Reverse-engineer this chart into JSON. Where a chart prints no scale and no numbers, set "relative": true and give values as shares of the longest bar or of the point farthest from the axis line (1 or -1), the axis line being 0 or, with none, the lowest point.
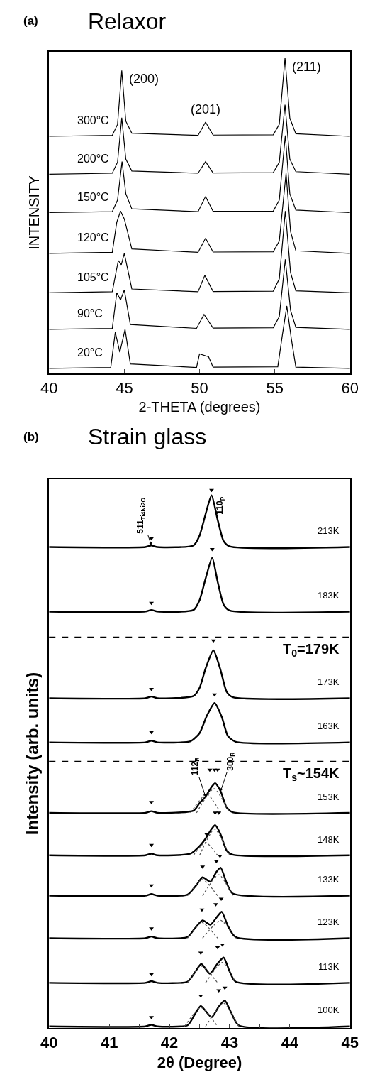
{
  "chart_data": [
    {
      "type": "line",
      "title": "Relaxor",
      "xlabel": "2-THETA (degrees)",
      "ylabel": "INTENSITY",
      "relative": true,
      "tick_labels": "x",
      "xlim": [
        40,
        60
      ],
      "xticks": [
        40,
        45,
        50,
        55,
        60
      ],
      "annotations": [
        "(a)",
        {
          "text": "(200)",
          "x": 44.83,
          "y": 0.961
        },
        {
          "text": "(201)",
          "x": 50.4,
          "y": 0.797
        },
        {
          "text": "(211)",
          "x": 55.68,
          "y": 1.0
        }
      ],
      "series": [
        {
          "name": "300°C",
          "color": "#000000",
          "x": [
            40,
            44.2,
            44.55,
            44.83,
            45.1,
            45.5,
            49.9,
            50.4,
            50.9,
            54.9,
            55.3,
            55.68,
            56.0,
            56.4,
            60
          ],
          "values": [
            0.752,
            0.755,
            0.79,
            0.961,
            0.8,
            0.762,
            0.755,
            0.797,
            0.756,
            0.757,
            0.79,
            1.0,
            0.81,
            0.76,
            0.752
          ]
        },
        {
          "name": "200°C",
          "color": "#000000",
          "x": [
            40,
            44.2,
            44.55,
            44.83,
            45.1,
            45.5,
            49.9,
            50.4,
            50.9,
            54.9,
            55.3,
            55.68,
            56.0,
            56.4,
            60
          ],
          "values": [
            0.632,
            0.635,
            0.67,
            0.811,
            0.68,
            0.642,
            0.635,
            0.672,
            0.636,
            0.637,
            0.67,
            0.852,
            0.68,
            0.64,
            0.632
          ]
        },
        {
          "name": "150°C",
          "color": "#000000",
          "x": [
            40,
            44.2,
            44.55,
            44.85,
            45.1,
            45.5,
            49.9,
            50.4,
            50.9,
            54.9,
            55.3,
            55.7,
            56.0,
            56.4,
            60
          ],
          "values": [
            0.51,
            0.513,
            0.55,
            0.672,
            0.57,
            0.522,
            0.513,
            0.561,
            0.514,
            0.515,
            0.55,
            0.755,
            0.57,
            0.518,
            0.51
          ]
        },
        {
          "name": "120°C",
          "color": "#000000",
          "x": [
            40,
            44.2,
            44.5,
            44.75,
            45.0,
            45.5,
            49.9,
            50.4,
            50.9,
            54.9,
            55.3,
            55.75,
            56.05,
            56.4,
            60
          ],
          "values": [
            0.381,
            0.384,
            0.48,
            0.515,
            0.49,
            0.395,
            0.384,
            0.429,
            0.385,
            0.386,
            0.42,
            0.635,
            0.45,
            0.389,
            0.381
          ]
        },
        {
          "name": "105°C",
          "color": "#000000",
          "x": [
            40,
            44.2,
            44.6,
            44.8,
            45.0,
            45.5,
            49.9,
            50.35,
            50.9,
            54.9,
            55.3,
            55.7,
            56.05,
            56.4,
            60
          ],
          "values": [
            0.256,
            0.259,
            0.358,
            0.345,
            0.381,
            0.268,
            0.259,
            0.311,
            0.26,
            0.261,
            0.3,
            0.515,
            0.32,
            0.262,
            0.256
          ]
        },
        {
          "name": "90°C",
          "color": "#000000",
          "x": [
            40,
            44.2,
            44.5,
            44.75,
            45.0,
            45.4,
            49.8,
            50.3,
            50.9,
            54.9,
            55.3,
            55.7,
            56.05,
            56.4,
            60
          ],
          "values": [
            0.14,
            0.143,
            0.256,
            0.233,
            0.265,
            0.155,
            0.143,
            0.187,
            0.144,
            0.145,
            0.18,
            0.362,
            0.2,
            0.146,
            0.14
          ]
        },
        {
          "name": "20°C",
          "color": "#000000",
          "x": [
            40,
            44.1,
            44.4,
            44.7,
            45.05,
            45.4,
            49.8,
            50.0,
            50.6,
            50.9,
            55.2,
            55.5,
            55.8,
            56.1,
            56.4,
            60
          ],
          "values": [
            0.016,
            0.019,
            0.131,
            0.067,
            0.14,
            0.03,
            0.019,
            0.062,
            0.053,
            0.02,
            0.021,
            0.12,
            0.214,
            0.11,
            0.02,
            0.016
          ]
        }
      ]
    },
    {
      "type": "line",
      "title": "Strain glass",
      "xlabel": "2θ (Degree)",
      "ylabel": "Intensity (arb. units)",
      "relative": true,
      "tick_labels": "x",
      "xlim": [
        40,
        45
      ],
      "xticks": [
        40,
        {
          "value": 40.5,
          "label": null
        },
        41,
        {
          "value": 41.5,
          "label": null
        },
        42,
        {
          "value": 42.5,
          "label": null
        },
        43,
        {
          "value": 43.5,
          "label": null
        },
        44,
        {
          "value": 44.5,
          "label": null
        },
        45
      ],
      "annotations": [
        "(b)",
        {
          "text": "511$_{Ti4Ni2O}$",
          "x": 41.7,
          "y": 0.897
        },
        {
          "text": "110$_{P}$",
          "x": 42.7,
          "y": 0.99
        },
        {
          "text": "112$_{R}$",
          "x": 42.6,
          "y": 0.43
        },
        {
          "text": "300$_{R}$",
          "x": 42.85,
          "y": 0.44
        },
        "T$_{0}$=179K",
        "T$_{s}$~154K"
      ],
      "ref_lines": [
        {
          "axis": "y",
          "value": 0.726,
          "line_style": "dashed",
          "color": "#000000"
        },
        {
          "axis": "y",
          "value": 0.495,
          "line_style": "dashed",
          "color": "#000000"
        }
      ],
      "series": [
        {
          "name": "213K",
          "color": "#000000",
          "x": [
            40,
            41.6,
            41.7,
            41.8,
            42.4,
            42.5,
            42.6,
            42.7,
            42.8,
            42.9,
            43.0,
            45
          ],
          "values": [
            0.894,
            0.894,
            0.897,
            0.894,
            0.897,
            0.915,
            0.955,
            0.99,
            0.945,
            0.905,
            0.895,
            0.894
          ]
        },
        {
          "name": "183K",
          "color": "#000000",
          "x": [
            40,
            41.6,
            41.7,
            41.8,
            42.4,
            42.5,
            42.6,
            42.71,
            42.8,
            42.9,
            43.0,
            45
          ],
          "values": [
            0.774,
            0.774,
            0.777,
            0.774,
            0.777,
            0.795,
            0.835,
            0.874,
            0.83,
            0.787,
            0.776,
            0.774
          ]
        },
        {
          "name": "173K",
          "color": "#000000",
          "x": [
            40,
            41.6,
            41.7,
            41.8,
            42.4,
            42.5,
            42.6,
            42.73,
            42.85,
            42.95,
            43.05,
            45
          ],
          "values": [
            0.613,
            0.613,
            0.616,
            0.613,
            0.617,
            0.632,
            0.668,
            0.702,
            0.665,
            0.625,
            0.615,
            0.613
          ]
        },
        {
          "name": "163K",
          "color": "#000000",
          "x": [
            40,
            41.6,
            41.7,
            41.8,
            42.35,
            42.5,
            42.62,
            42.75,
            42.87,
            42.97,
            43.1,
            45
          ],
          "values": [
            0.531,
            0.531,
            0.534,
            0.531,
            0.533,
            0.548,
            0.58,
            0.604,
            0.578,
            0.543,
            0.532,
            0.531
          ]
        },
        {
          "name": "153K",
          "color": "#000000",
          "x": [
            40,
            41.6,
            41.7,
            41.8,
            42.4,
            42.5,
            42.6,
            42.7,
            42.76,
            42.85,
            42.95,
            43.05,
            45
          ],
          "values": [
            0.4,
            0.4,
            0.403,
            0.4,
            0.404,
            0.418,
            0.43,
            0.448,
            0.455,
            0.44,
            0.41,
            0.401,
            0.4
          ]
        },
        {
          "name": "148K",
          "color": "#000000",
          "x": [
            40,
            41.6,
            41.7,
            41.8,
            42.35,
            42.5,
            42.6,
            42.7,
            42.76,
            42.85,
            42.95,
            43.05,
            45
          ],
          "values": [
            0.321,
            0.321,
            0.324,
            0.321,
            0.324,
            0.338,
            0.352,
            0.37,
            0.377,
            0.36,
            0.33,
            0.322,
            0.321
          ]
        },
        {
          "name": "133K",
          "color": "#000000",
          "x": [
            40,
            41.6,
            41.7,
            41.8,
            42.3,
            42.45,
            42.55,
            42.68,
            42.78,
            42.85,
            42.95,
            43.05,
            45
          ],
          "values": [
            0.246,
            0.246,
            0.249,
            0.246,
            0.248,
            0.266,
            0.28,
            0.272,
            0.29,
            0.298,
            0.27,
            0.25,
            0.246
          ]
        },
        {
          "name": "123K",
          "color": "#000000",
          "x": [
            40,
            41.6,
            41.7,
            41.8,
            42.3,
            42.42,
            42.55,
            42.68,
            42.8,
            42.87,
            42.97,
            43.1,
            45
          ],
          "values": [
            0.167,
            0.167,
            0.17,
            0.167,
            0.169,
            0.185,
            0.2,
            0.192,
            0.208,
            0.216,
            0.19,
            0.169,
            0.167
          ]
        },
        {
          "name": "113K",
          "color": "#000000",
          "x": [
            40,
            41.6,
            41.7,
            41.8,
            42.3,
            42.42,
            42.53,
            42.67,
            42.8,
            42.9,
            43.0,
            43.1,
            45
          ],
          "values": [
            0.084,
            0.084,
            0.087,
            0.084,
            0.086,
            0.103,
            0.119,
            0.101,
            0.12,
            0.131,
            0.105,
            0.086,
            0.084
          ]
        },
        {
          "name": "100K",
          "color": "#000000",
          "x": [
            40,
            41.6,
            41.7,
            41.8,
            42.3,
            42.42,
            42.52,
            42.7,
            42.82,
            42.92,
            43.02,
            43.15,
            45
          ],
          "values": [
            0.003,
            0.003,
            0.006,
            0.003,
            0.005,
            0.025,
            0.041,
            0.02,
            0.04,
            0.051,
            0.03,
            0.005,
            0.003
          ]
        },
        {
          "color": "#555555",
          "line_style": "dotted",
          "x": [
            42.35,
            42.62,
            42.85
          ],
          "values": [
            0.4,
            0.435,
            0.4
          ]
        },
        {
          "color": "#555555",
          "line_style": "dotted",
          "x": [
            42.45,
            42.74,
            43.0
          ],
          "values": [
            0.4,
            0.445,
            0.4
          ]
        },
        {
          "color": "#555555",
          "line_style": "dotted",
          "x": [
            42.4,
            42.6,
            42.8
          ],
          "values": [
            0.321,
            0.345,
            0.321
          ]
        },
        {
          "color": "#555555",
          "line_style": "dotted",
          "x": [
            42.5,
            42.75,
            43.0
          ],
          "values": [
            0.321,
            0.37,
            0.321
          ]
        },
        {
          "color": "#555555",
          "line_style": "dotted",
          "x": [
            42.3,
            42.55,
            42.8
          ],
          "values": [
            0.246,
            0.276,
            0.246
          ]
        },
        {
          "color": "#555555",
          "line_style": "dotted",
          "x": [
            42.55,
            42.82,
            43.05
          ],
          "values": [
            0.246,
            0.285,
            0.246
          ]
        },
        {
          "color": "#555555",
          "line_style": "dotted",
          "x": [
            42.3,
            42.54,
            42.8
          ],
          "values": [
            0.167,
            0.196,
            0.167
          ]
        },
        {
          "color": "#555555",
          "line_style": "dotted",
          "x": [
            42.55,
            42.85,
            43.1
          ],
          "values": [
            0.167,
            0.2,
            0.167
          ]
        },
        {
          "color": "#555555",
          "line_style": "dotted",
          "x": [
            42.3,
            42.53,
            42.8
          ],
          "values": [
            0.084,
            0.115,
            0.084
          ]
        },
        {
          "color": "#555555",
          "line_style": "dotted",
          "x": [
            42.6,
            42.88,
            43.1
          ],
          "values": [
            0.084,
            0.122,
            0.084
          ]
        },
        {
          "color": "#555555",
          "line_style": "dotted",
          "x": [
            42.25,
            42.52,
            42.8
          ],
          "values": [
            0.003,
            0.038,
            0.003
          ]
        },
        {
          "color": "#555555",
          "line_style": "dotted",
          "x": [
            42.6,
            42.9,
            43.15
          ],
          "values": [
            0.003,
            0.046,
            0.003
          ]
        },
        {
          "type": "scatter",
          "marker": "triangle",
          "color": "#000000",
          "x": [
            41.7,
            42.7,
            41.7,
            42.71,
            41.7,
            42.73,
            41.7,
            42.75,
            41.7,
            42.67,
            42.75,
            42.8,
            41.7,
            42.62,
            42.76,
            42.82,
            41.7,
            42.55,
            42.78,
            42.84,
            41.7,
            42.54,
            42.77,
            42.86,
            41.7,
            42.52,
            42.8,
            42.88,
            41.7,
            42.52,
            42.82,
            42.92
          ],
          "values": [
            0.91,
            1.0,
            0.79,
            0.89,
            0.63,
            0.72,
            0.55,
            0.62,
            0.42,
            0.48,
            0.48,
            0.48,
            0.34,
            0.36,
            0.4,
            0.4,
            0.265,
            0.3,
            0.31,
            0.32,
            0.185,
            0.22,
            0.23,
            0.24,
            0.1,
            0.14,
            0.15,
            0.155,
            0.02,
            0.06,
            0.07,
            0.075
          ]
        }
      ]
    }
  ]
}
